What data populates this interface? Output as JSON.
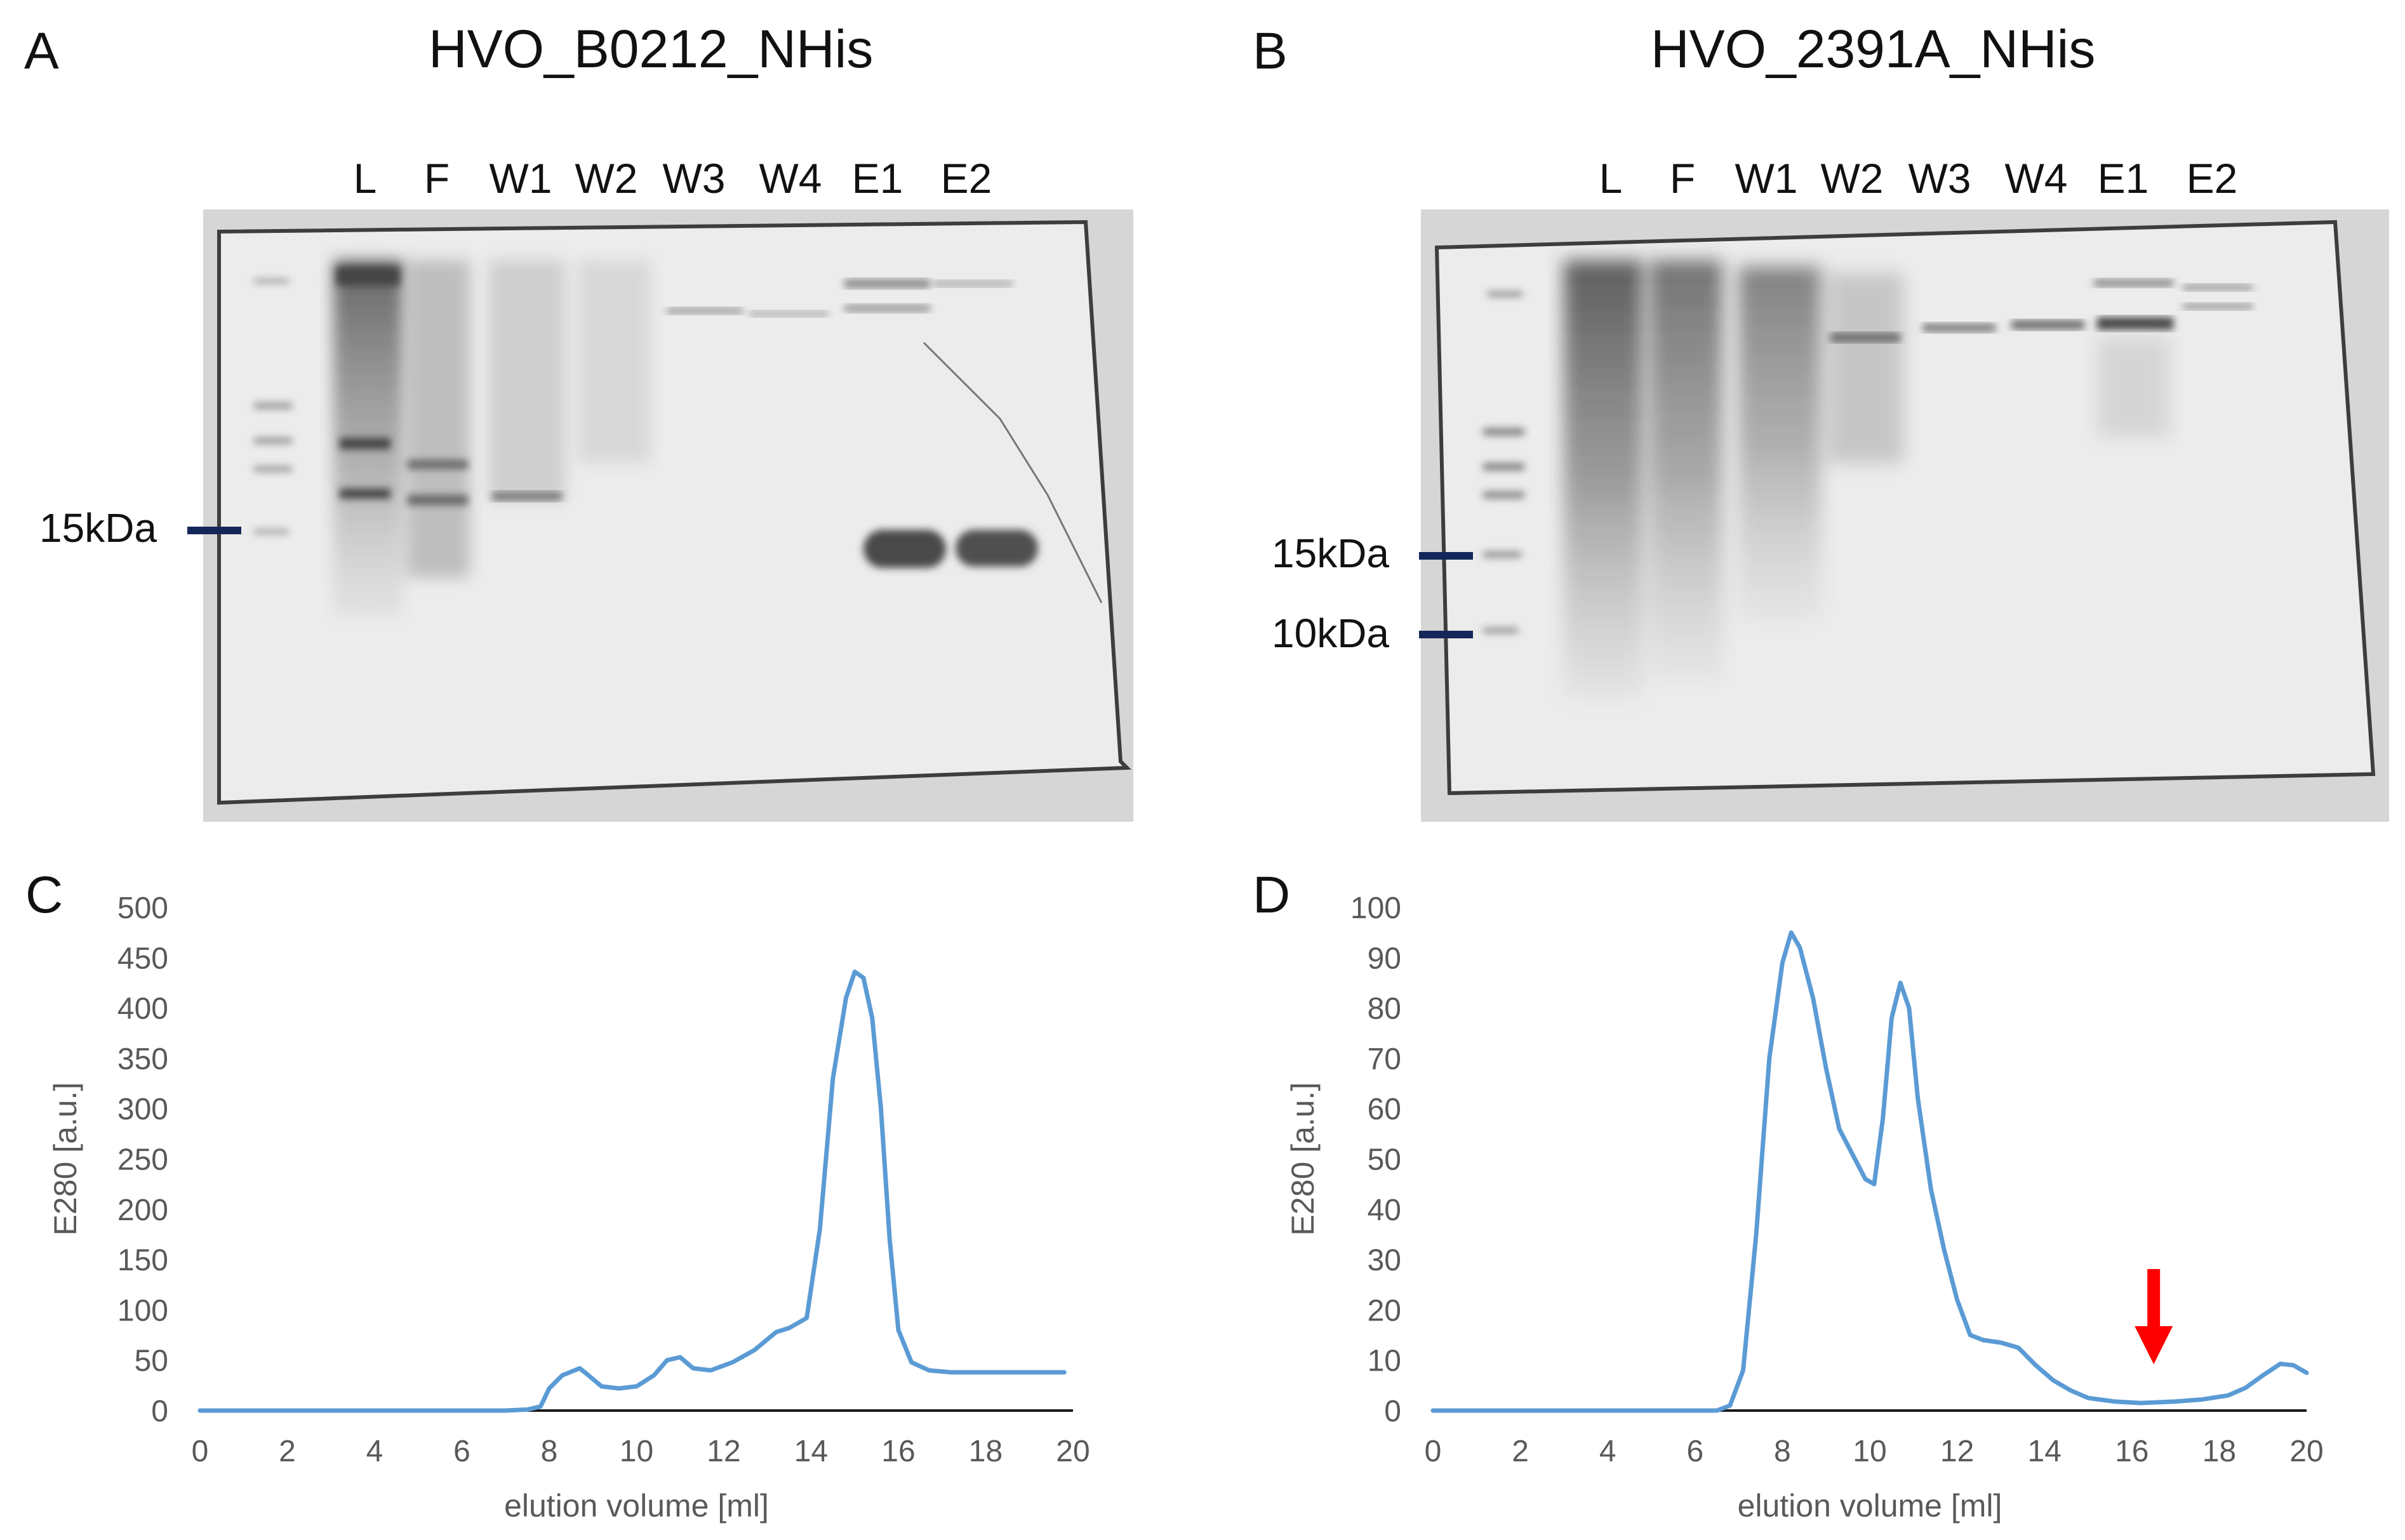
{
  "panels": {
    "a": {
      "letter": "A",
      "title": "HVO_B0212_NHis",
      "lanes": [
        "L",
        "F",
        "W1",
        "W2",
        "W3",
        "W4",
        "E1",
        "E2"
      ],
      "markers": [
        "15kDa"
      ]
    },
    "b": {
      "letter": "B",
      "title": "HVO_2391A_NHis",
      "lanes": [
        "L",
        "F",
        "W1",
        "W2",
        "W3",
        "W4",
        "E1",
        "E2"
      ],
      "markers": [
        "15kDa",
        "10kDa"
      ]
    },
    "c": {
      "letter": "C"
    },
    "d": {
      "letter": "D"
    }
  },
  "colors": {
    "trace": "#5b9bd5",
    "arrow": "#ff0000",
    "axis_text": "#595959",
    "marker_tick": "#14275a"
  },
  "chart_data": [
    {
      "type": "line",
      "panel": "C",
      "xlabel": "elution volume [ml]",
      "ylabel": "E280 [a.u.]",
      "xlim": [
        0,
        20
      ],
      "ylim": [
        0,
        500
      ],
      "xticks": [
        0,
        2,
        4,
        6,
        8,
        10,
        12,
        14,
        16,
        18,
        20
      ],
      "yticks": [
        0,
        50,
        100,
        150,
        200,
        250,
        300,
        350,
        400,
        450,
        500
      ],
      "grid": false,
      "series": [
        {
          "x": [
            0,
            7.0,
            7.5,
            7.8,
            8.0,
            8.3,
            8.7,
            8.9,
            9.2,
            9.6,
            10.0,
            10.4,
            10.7,
            11.0,
            11.3,
            11.7,
            12.2,
            12.7,
            13.2,
            13.5,
            13.9,
            14.2,
            14.5,
            14.8,
            15.0,
            15.2,
            15.4,
            15.6,
            15.8,
            16.0,
            16.3,
            16.7,
            17.2,
            18.0,
            19.0,
            19.8
          ],
          "y": [
            0,
            0,
            1,
            4,
            22,
            35,
            42,
            35,
            24,
            22,
            24,
            35,
            50,
            53,
            42,
            40,
            48,
            60,
            78,
            82,
            92,
            180,
            330,
            410,
            436,
            430,
            390,
            300,
            170,
            80,
            48,
            40,
            38,
            38,
            38,
            38
          ]
        }
      ]
    },
    {
      "type": "line",
      "panel": "D",
      "xlabel": "elution volume [ml]",
      "ylabel": "E280 [a.u.]",
      "xlim": [
        0,
        20
      ],
      "ylim": [
        0,
        100
      ],
      "xticks": [
        0,
        2,
        4,
        6,
        8,
        10,
        12,
        14,
        16,
        18,
        20
      ],
      "yticks": [
        0,
        10,
        20,
        30,
        40,
        50,
        60,
        70,
        80,
        90,
        100
      ],
      "grid": false,
      "arrow_at_x": 16.5,
      "series": [
        {
          "x": [
            0,
            6.5,
            6.8,
            7.1,
            7.4,
            7.7,
            8.0,
            8.2,
            8.4,
            8.7,
            9.0,
            9.3,
            9.6,
            9.9,
            10.1,
            10.3,
            10.5,
            10.7,
            10.9,
            11.1,
            11.4,
            11.7,
            12.0,
            12.3,
            12.6,
            13.0,
            13.4,
            13.8,
            14.2,
            14.6,
            15.0,
            15.6,
            16.2,
            17.0,
            17.6,
            18.2,
            18.6,
            19.0,
            19.4,
            19.7,
            20.0
          ],
          "y": [
            0,
            0,
            1,
            8,
            35,
            70,
            89,
            95,
            92,
            82,
            68,
            56,
            51,
            46,
            45,
            58,
            78,
            85,
            80,
            62,
            44,
            32,
            22,
            15,
            14,
            13.5,
            12.5,
            9,
            6,
            4,
            2.5,
            1.8,
            1.5,
            1.8,
            2.2,
            3,
            4.5,
            7,
            9.3,
            9,
            7.5
          ]
        }
      ]
    }
  ]
}
